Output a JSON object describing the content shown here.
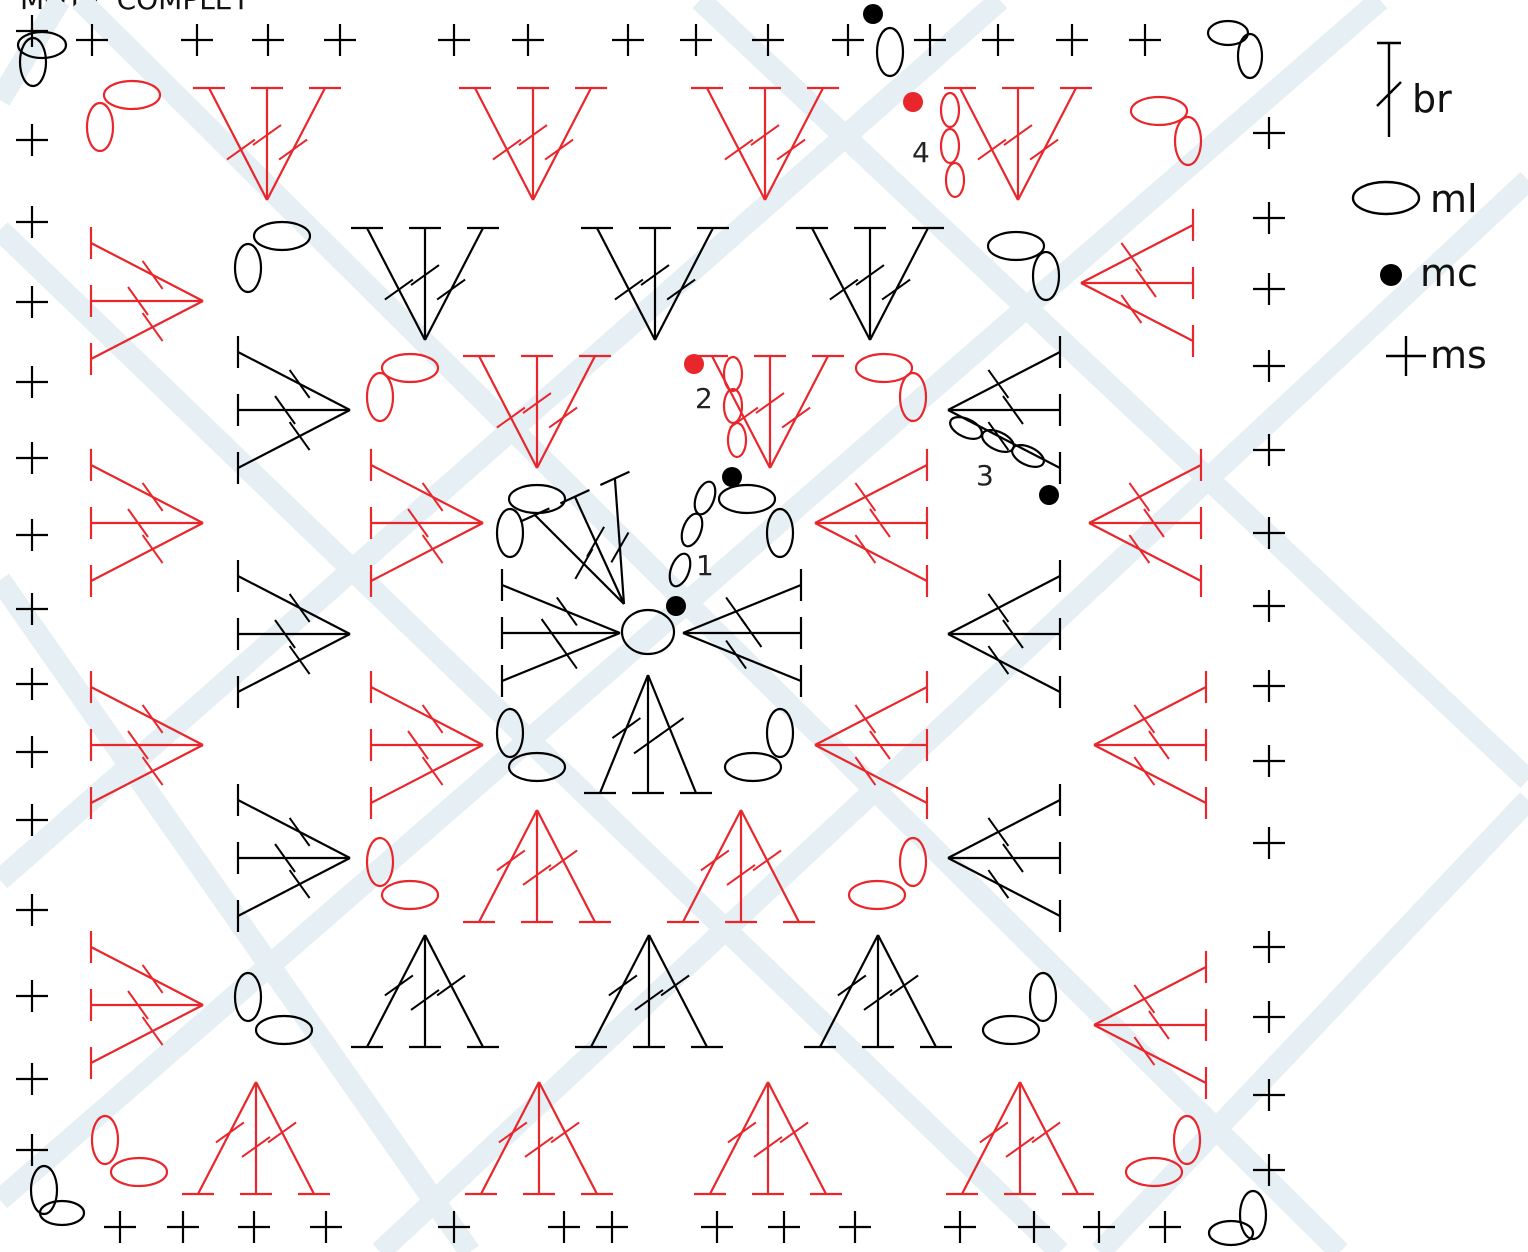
{
  "title": "MOTIF COMPLET",
  "legend": [
    {
      "symbol": "br-icon",
      "label": "br"
    },
    {
      "symbol": "ml-icon",
      "label": "ml"
    },
    {
      "symbol": "mc-icon",
      "label": "mc"
    },
    {
      "symbol": "ms-icon",
      "label": "ms"
    }
  ],
  "rounds": [
    {
      "number": "1",
      "color": "#000000"
    },
    {
      "number": "2",
      "color": "#e8262b"
    },
    {
      "number": "3",
      "color": "#000000"
    },
    {
      "number": "4",
      "color": "#e8262b"
    }
  ],
  "colors": {
    "black": "#000000",
    "red": "#e8262b",
    "watermark": "#e6eff4"
  }
}
